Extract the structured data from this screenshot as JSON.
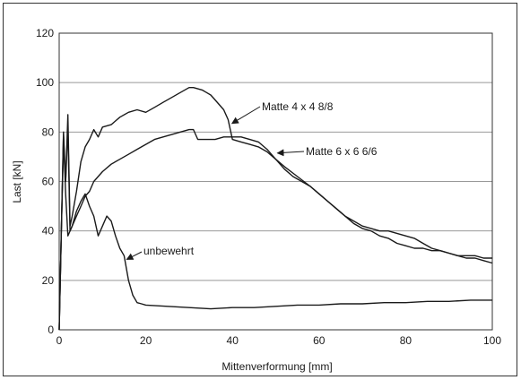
{
  "chart_data": {
    "type": "line",
    "title": "",
    "xlabel": "Mittenverformung [mm]",
    "ylabel": "Last [kN]",
    "xlim": [
      0,
      100
    ],
    "ylim": [
      0,
      120
    ],
    "x_ticks": [
      "0",
      "20",
      "40",
      "60",
      "80",
      "100"
    ],
    "y_ticks": [
      "0",
      "20",
      "40",
      "60",
      "80",
      "100",
      "120"
    ],
    "grid": "horizontal",
    "legend": "none (series labelled directly with arrows)",
    "colors": {
      "series": "#1a1a1a",
      "grid": "#999999",
      "frame": "#333333"
    },
    "series": [
      {
        "name": "Matte 4 x 4 8/8",
        "x": [
          0,
          0.5,
          1.0,
          1.5,
          2.0,
          2.5,
          3,
          4,
          5,
          6,
          7,
          8,
          9,
          10,
          12,
          14,
          16,
          18,
          20,
          22,
          24,
          26,
          28,
          30,
          31,
          32,
          33,
          34,
          35,
          36,
          37,
          38,
          39,
          40,
          42,
          44,
          46,
          48,
          50,
          52,
          55,
          58,
          60,
          62,
          64,
          66,
          68,
          70,
          72,
          74,
          76,
          78,
          80,
          82,
          84,
          86,
          88,
          90,
          92,
          94,
          96,
          98,
          100
        ],
        "y": [
          0,
          40,
          76,
          60,
          87,
          42,
          46,
          56,
          68,
          74,
          77,
          81,
          78,
          82,
          83,
          86,
          88,
          89,
          88,
          90,
          92,
          94,
          96,
          98,
          98,
          97.5,
          97,
          96,
          95,
          93,
          91,
          89,
          85,
          77,
          76,
          75,
          74,
          72,
          69,
          66,
          62,
          58,
          55,
          52,
          49,
          46,
          44,
          42,
          41,
          40,
          40,
          39,
          38,
          37,
          35,
          33,
          32,
          31,
          30,
          29,
          29,
          28,
          27
        ]
      },
      {
        "name": "Matte 6 x 6 6/6",
        "x": [
          0,
          0.5,
          1.0,
          1.5,
          2.0,
          2.5,
          3,
          4,
          5,
          6,
          7,
          8,
          10,
          12,
          14,
          16,
          18,
          20,
          22,
          24,
          26,
          28,
          30,
          31,
          32,
          34,
          36,
          38,
          40,
          42,
          44,
          46,
          48,
          50,
          52,
          54,
          56,
          58,
          60,
          62,
          64,
          66,
          68,
          70,
          72,
          74,
          76,
          78,
          80,
          82,
          84,
          86,
          88,
          90,
          92,
          94,
          96,
          98,
          100
        ],
        "y": [
          0,
          40,
          80,
          60,
          82,
          40,
          42,
          46,
          50,
          54,
          56,
          60,
          64,
          67,
          69,
          71,
          73,
          75,
          77,
          78,
          79,
          80,
          81,
          81,
          77,
          77,
          77,
          78,
          78,
          78,
          77,
          76,
          73,
          69,
          65,
          62,
          60,
          58,
          55,
          52,
          49,
          46,
          43,
          41,
          40,
          38,
          37,
          35,
          34,
          33,
          33,
          32,
          32,
          31,
          30,
          30,
          30,
          29,
          29
        ]
      },
      {
        "name": "unbewehrt",
        "x": [
          0,
          0.5,
          1.0,
          1.5,
          2,
          3,
          4,
          5,
          6,
          7,
          8,
          9,
          10,
          11,
          12,
          13,
          14,
          15,
          16,
          17,
          18,
          19,
          20,
          25,
          30,
          35,
          40,
          45,
          50,
          55,
          60,
          65,
          70,
          75,
          80,
          85,
          90,
          95,
          100
        ],
        "y": [
          0,
          40,
          79,
          55,
          38,
          42,
          48,
          52,
          55,
          50,
          46,
          38,
          42,
          46,
          44,
          38,
          33,
          30,
          20,
          14,
          11,
          10.5,
          10,
          9.5,
          9,
          8.5,
          9,
          9,
          9.5,
          10,
          10,
          10.5,
          10.5,
          11,
          11,
          11.5,
          11.5,
          12,
          12
        ]
      }
    ],
    "annotations": [
      {
        "text": "Matte 4 x 4 8/8",
        "series": "Matte 4 x 4 8/8",
        "at_x": 39.5,
        "at_y": 83.5
      },
      {
        "text": "Matte 6 x 6 6/6",
        "series": "Matte 6 x 6 6/6",
        "at_x": 50,
        "at_y": 71.5
      },
      {
        "text": "unbewehrt",
        "series": "unbewehrt",
        "at_x": 15.2,
        "at_y": 28.5
      }
    ]
  }
}
